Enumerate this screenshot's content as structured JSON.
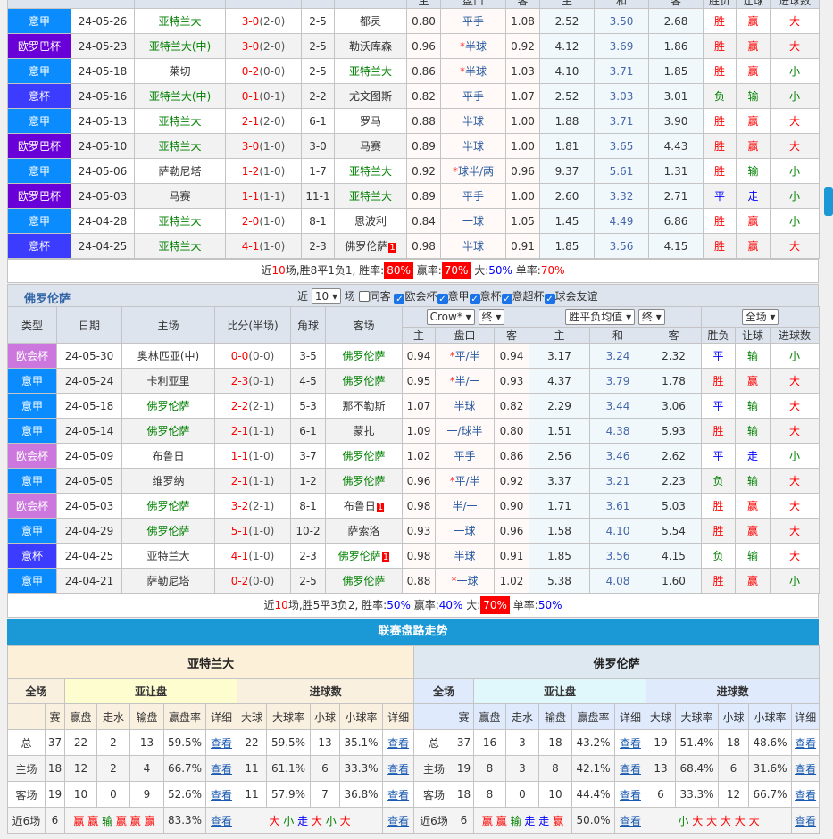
{
  "colors": {
    "意甲": "#0a8cff",
    "欧罗巴杯": "#6a00d8",
    "意杯": "#3c3cff",
    "欧会杯": "#cc77dd",
    "accent": "#1b98d6"
  },
  "table1": {
    "header_partial": [
      "",
      "",
      "",
      "",
      "",
      "",
      "主",
      "盘口",
      "客",
      "主",
      "和",
      "客",
      "胜负",
      "让球",
      "进球数"
    ],
    "rows": [
      [
        "意甲",
        "24-05-26",
        "亚特兰大",
        1,
        "3-0",
        "(2-0)",
        "2-5",
        "都灵",
        0,
        0,
        "0.80",
        "平手",
        0,
        "1.08",
        "2.52",
        "3.50",
        "2.68",
        "胜",
        "赢",
        "大"
      ],
      [
        "欧罗巴杯",
        "24-05-23",
        "亚特兰大(中)",
        1,
        "3-0",
        "(2-0)",
        "2-5",
        "勒沃库森",
        0,
        0,
        "0.96",
        "半球",
        1,
        "0.92",
        "4.12",
        "3.69",
        "1.86",
        "胜",
        "赢",
        "大"
      ],
      [
        "意甲",
        "24-05-18",
        "莱切",
        0,
        "0-2",
        "(0-0)",
        "2-5",
        "亚特兰大",
        1,
        0,
        "0.86",
        "半球",
        1,
        "1.03",
        "4.10",
        "3.71",
        "1.85",
        "胜",
        "赢",
        "小"
      ],
      [
        "意杯",
        "24-05-16",
        "亚特兰大(中)",
        1,
        "0-1",
        "(0-1)",
        "2-2",
        "尤文图斯",
        0,
        0,
        "0.82",
        "平手",
        0,
        "1.07",
        "2.52",
        "3.03",
        "3.01",
        "负",
        "输",
        "小"
      ],
      [
        "意甲",
        "24-05-13",
        "亚特兰大",
        1,
        "2-1",
        "(2-0)",
        "6-1",
        "罗马",
        0,
        0,
        "0.88",
        "半球",
        0,
        "1.00",
        "1.88",
        "3.71",
        "3.90",
        "胜",
        "赢",
        "大"
      ],
      [
        "欧罗巴杯",
        "24-05-10",
        "亚特兰大",
        1,
        "3-0",
        "(1-0)",
        "3-0",
        "马赛",
        0,
        0,
        "0.89",
        "半球",
        0,
        "1.00",
        "1.81",
        "3.65",
        "4.43",
        "胜",
        "赢",
        "大"
      ],
      [
        "意甲",
        "24-05-06",
        "萨勒尼塔",
        0,
        "1-2",
        "(1-0)",
        "1-7",
        "亚特兰大",
        1,
        0,
        "0.92",
        "球半/两",
        1,
        "0.96",
        "9.37",
        "5.61",
        "1.31",
        "胜",
        "输",
        "小"
      ],
      [
        "欧罗巴杯",
        "24-05-03",
        "马赛",
        0,
        "1-1",
        "(1-1)",
        "11-1",
        "亚特兰大",
        1,
        0,
        "0.89",
        "平手",
        0,
        "1.00",
        "2.60",
        "3.32",
        "2.71",
        "平",
        "走",
        "小"
      ],
      [
        "意甲",
        "24-04-28",
        "亚特兰大",
        1,
        "2-0",
        "(1-0)",
        "8-1",
        "恩波利",
        0,
        0,
        "0.84",
        "一球",
        0,
        "1.05",
        "1.45",
        "4.49",
        "6.86",
        "胜",
        "赢",
        "小"
      ],
      [
        "意杯",
        "24-04-25",
        "亚特兰大",
        1,
        "4-1",
        "(1-0)",
        "2-3",
        "佛罗伦萨",
        0,
        "1",
        "0.98",
        "半球",
        0,
        "0.91",
        "1.85",
        "3.56",
        "4.15",
        "胜",
        "赢",
        "大"
      ]
    ],
    "summary": [
      {
        "t": "近"
      },
      {
        "t": "10",
        "c": "r"
      },
      {
        "t": "场,胜8平1负1, 胜率:"
      },
      {
        "t": "80%",
        "c": "badge"
      },
      {
        "t": " 赢率:"
      },
      {
        "t": "70%",
        "c": "badge"
      },
      {
        "t": " 大:"
      },
      {
        "t": "50%",
        "c": "b"
      },
      {
        "t": " 单率:"
      },
      {
        "t": "70%",
        "c": "r"
      }
    ]
  },
  "filter": {
    "team": "佛罗伦萨",
    "near": "近",
    "count": "10",
    "unit": "场",
    "same_away": "同客",
    "leagues": [
      "欧会杯",
      "意甲",
      "意杯",
      "意超杯",
      "球会友谊"
    ]
  },
  "table2": {
    "headers": [
      "类型",
      "日期",
      "主场",
      "比分(半场)",
      "角球",
      "客场"
    ],
    "company": "Crow*",
    "final1": "终",
    "odds_type": "胜平负均值",
    "final2": "终",
    "scope": "全场",
    "subheaders": [
      "主",
      "盘口",
      "客",
      "主",
      "和",
      "客",
      "胜负",
      "让球",
      "进球数"
    ],
    "rows": [
      [
        "欧会杯",
        "24-05-30",
        "奥林匹亚(中)",
        0,
        "0-0",
        "(0-0)",
        "3-5",
        "佛罗伦萨",
        1,
        0,
        "0.94",
        "平/半",
        1,
        "0.94",
        "3.17",
        "3.24",
        "2.32",
        "平",
        "输",
        "小"
      ],
      [
        "意甲",
        "24-05-24",
        "卡利亚里",
        0,
        "2-3",
        "(0-1)",
        "4-5",
        "佛罗伦萨",
        1,
        0,
        "0.95",
        "半/一",
        1,
        "0.93",
        "4.37",
        "3.79",
        "1.78",
        "胜",
        "赢",
        "大"
      ],
      [
        "意甲",
        "24-05-18",
        "佛罗伦萨",
        1,
        "2-2",
        "(2-1)",
        "5-3",
        "那不勒斯",
        0,
        0,
        "1.07",
        "半球",
        0,
        "0.82",
        "2.29",
        "3.44",
        "3.06",
        "平",
        "输",
        "大"
      ],
      [
        "意甲",
        "24-05-14",
        "佛罗伦萨",
        1,
        "2-1",
        "(1-1)",
        "6-1",
        "蒙扎",
        0,
        0,
        "1.09",
        "一/球半",
        0,
        "0.80",
        "1.51",
        "4.38",
        "5.93",
        "胜",
        "输",
        "大"
      ],
      [
        "欧会杯",
        "24-05-09",
        "布鲁日",
        0,
        "1-1",
        "(1-0)",
        "3-7",
        "佛罗伦萨",
        1,
        0,
        "1.02",
        "平手",
        0,
        "0.86",
        "2.56",
        "3.46",
        "2.62",
        "平",
        "走",
        "小"
      ],
      [
        "意甲",
        "24-05-05",
        "维罗纳",
        0,
        "2-1",
        "(1-1)",
        "1-2",
        "佛罗伦萨",
        1,
        0,
        "0.96",
        "平/半",
        1,
        "0.92",
        "3.37",
        "3.21",
        "2.23",
        "负",
        "输",
        "大"
      ],
      [
        "欧会杯",
        "24-05-03",
        "佛罗伦萨",
        1,
        "3-2",
        "(2-1)",
        "8-1",
        "布鲁日",
        0,
        "1",
        "0.98",
        "半/一",
        0,
        "0.90",
        "1.71",
        "3.61",
        "5.03",
        "胜",
        "赢",
        "大"
      ],
      [
        "意甲",
        "24-04-29",
        "佛罗伦萨",
        1,
        "5-1",
        "(1-0)",
        "10-2",
        "萨索洛",
        0,
        0,
        "0.93",
        "一球",
        0,
        "0.96",
        "1.58",
        "4.10",
        "5.54",
        "胜",
        "赢",
        "大"
      ],
      [
        "意杯",
        "24-04-25",
        "亚特兰大",
        0,
        "4-1",
        "(1-0)",
        "2-3",
        "佛罗伦萨",
        1,
        "1",
        "0.98",
        "半球",
        0,
        "0.91",
        "1.85",
        "3.56",
        "4.15",
        "负",
        "输",
        "大"
      ],
      [
        "意甲",
        "24-04-21",
        "萨勒尼塔",
        0,
        "0-2",
        "(0-0)",
        "2-5",
        "佛罗伦萨",
        1,
        0,
        "0.88",
        "一球",
        1,
        "1.02",
        "5.38",
        "4.08",
        "1.60",
        "胜",
        "赢",
        "小"
      ]
    ],
    "summary": [
      {
        "t": "近"
      },
      {
        "t": "10",
        "c": "r"
      },
      {
        "t": "场,胜5平3负2, 胜率:"
      },
      {
        "t": "50%",
        "c": "b"
      },
      {
        "t": " 赢率:"
      },
      {
        "t": "40%",
        "c": "b"
      },
      {
        "t": " 大:"
      },
      {
        "t": "70%",
        "c": "badge"
      },
      {
        "t": " 单率:"
      },
      {
        "t": "50%",
        "c": "b"
      }
    ]
  },
  "trend": {
    "title": "联赛盘路走势",
    "group_headers": [
      "全场",
      "亚让盘",
      "进球数"
    ],
    "col_headers": [
      "",
      "赛",
      "赢盘",
      "走水",
      "输盘",
      "赢盘率",
      "详细",
      "大球",
      "大球率",
      "小球",
      "小球率",
      "详细"
    ],
    "link": "查看",
    "teams": [
      {
        "name": "亚特兰大",
        "rows": [
          [
            "总",
            "37",
            "22",
            "2",
            "13",
            "59.5%",
            "22",
            "59.5%",
            "13",
            "35.1%"
          ],
          [
            "主场",
            "18",
            "12",
            "2",
            "4",
            "66.7%",
            "11",
            "61.1%",
            "6",
            "33.3%"
          ],
          [
            "客场",
            "19",
            "10",
            "0",
            "9",
            "52.6%",
            "11",
            "57.9%",
            "7",
            "36.8%"
          ]
        ],
        "recent": {
          "label": "近6场",
          "n": "6",
          "pan": [
            "赢",
            "赢",
            "输",
            "赢",
            "赢",
            "赢"
          ],
          "rate": "83.3%",
          "ou": [
            "大",
            "小",
            "走",
            "大",
            "小",
            "大"
          ]
        }
      },
      {
        "name": "佛罗伦萨",
        "rows": [
          [
            "总",
            "37",
            "16",
            "3",
            "18",
            "43.2%",
            "19",
            "51.4%",
            "18",
            "48.6%"
          ],
          [
            "主场",
            "19",
            "8",
            "3",
            "8",
            "42.1%",
            "13",
            "68.4%",
            "6",
            "31.6%"
          ],
          [
            "客场",
            "18",
            "8",
            "0",
            "10",
            "44.4%",
            "6",
            "33.3%",
            "12",
            "66.7%"
          ]
        ],
        "recent": {
          "label": "近6场",
          "n": "6",
          "pan": [
            "赢",
            "赢",
            "输",
            "走",
            "走",
            "赢"
          ],
          "rate": "50.0%",
          "ou": [
            "小",
            "大",
            "大",
            "大",
            "大",
            "大"
          ]
        }
      }
    ]
  }
}
